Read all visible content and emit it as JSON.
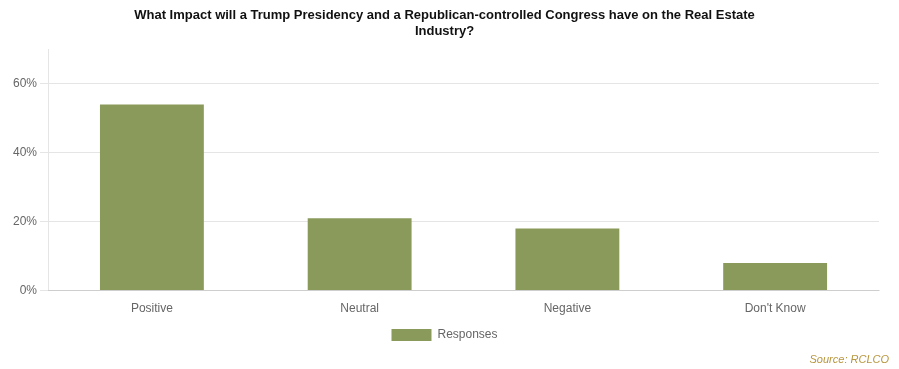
{
  "chart_data": {
    "type": "bar",
    "title": [
      "What Impact will a Trump Presidency and a Republican-controlled Congress have on the Real Estate",
      "Industry?"
    ],
    "categories": [
      "Positive",
      "Neutral",
      "Negative",
      "Don't Know"
    ],
    "series": [
      {
        "name": "Responses",
        "color": "#8a9a5b",
        "values": [
          0.54,
          0.21,
          0.18,
          0.08
        ]
      }
    ],
    "ylim": [
      0,
      0.7
    ],
    "yticks": [
      {
        "value": 0.0,
        "label": "0%"
      },
      {
        "value": 0.2,
        "label": "20%"
      },
      {
        "value": 0.4,
        "label": "40%"
      },
      {
        "value": 0.6,
        "label": "60%"
      }
    ],
    "grid": true,
    "legend": "bottom",
    "annotation": "Source: RCLCO"
  }
}
